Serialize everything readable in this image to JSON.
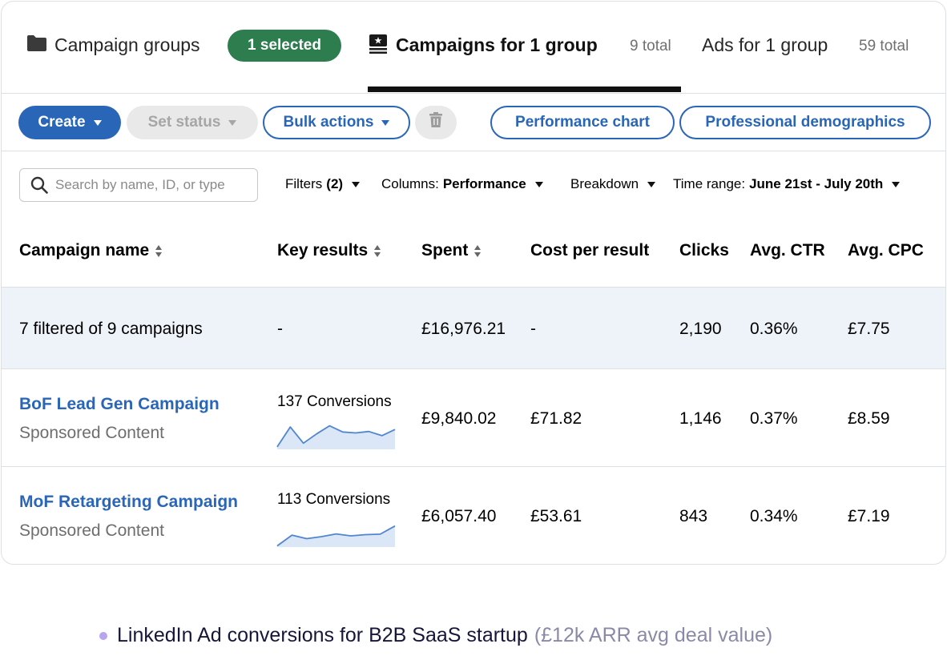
{
  "tabs": {
    "campaign_groups": {
      "label": "Campaign groups",
      "badge": "1 selected"
    },
    "campaigns": {
      "label": "Campaigns for 1 group",
      "count": "9 total"
    },
    "ads": {
      "label": "Ads for 1 group",
      "count": "59 total"
    }
  },
  "toolbar": {
    "create": "Create",
    "set_status": "Set status",
    "bulk_actions": "Bulk actions",
    "performance_chart": "Performance chart",
    "professional_demographics": "Professional demographics"
  },
  "filters": {
    "search_placeholder": "Search by name, ID, or type",
    "filters_label": "Filters",
    "filters_count": "(2)",
    "columns_label": "Columns:",
    "columns_value": "Performance",
    "breakdown_label": "Breakdown",
    "time_range_label": "Time range:",
    "time_range_value": "June 21st - July 20th"
  },
  "table": {
    "headers": {
      "campaign_name": "Campaign name",
      "key_results": "Key results",
      "spent": "Spent",
      "cost_per_result": "Cost per result",
      "clicks": "Clicks",
      "avg_ctr": "Avg. CTR",
      "avg_cpc": "Avg. CPC"
    },
    "summary": {
      "name": "7 filtered of 9 campaigns",
      "key_results": "-",
      "spent": "£16,976.21",
      "cost_per_result": "-",
      "clicks": "2,190",
      "avg_ctr": "0.36%",
      "avg_cpc": "£7.75"
    },
    "rows": [
      {
        "name": "BoF Lead Gen Campaign",
        "type": "Sponsored Content",
        "key_results": "137 Conversions",
        "trend": [
          0.1,
          0.9,
          0.25,
          0.62,
          0.95,
          0.7,
          0.66,
          0.72,
          0.55,
          0.8
        ],
        "spent": "£9,840.02",
        "cost_per_result": "£71.82",
        "clicks": "1,146",
        "avg_ctr": "0.37%",
        "avg_cpc": "£8.59"
      },
      {
        "name": "MoF Retargeting Campaign",
        "type": "Sponsored Content",
        "key_results": "113 Conversions",
        "trend": [
          0.05,
          0.48,
          0.34,
          0.42,
          0.53,
          0.45,
          0.5,
          0.52,
          0.85
        ],
        "spent": "£6,057.40",
        "cost_per_result": "£53.61",
        "clicks": "843",
        "avg_ctr": "0.34%",
        "avg_cpc": "£7.19"
      }
    ]
  },
  "caption": {
    "main": "LinkedIn Ad conversions for B2B SaaS startup",
    "sub": "(£12k ARR avg deal value)"
  },
  "colors": {
    "brand_blue": "#2a66b8",
    "selected_green": "#2e7d4f",
    "summary_bg": "#eef3fa",
    "sparkline_line": "#4f86d1",
    "sparkline_fill": "#dbe6f7",
    "caption_dot": "#b9a4f2"
  }
}
